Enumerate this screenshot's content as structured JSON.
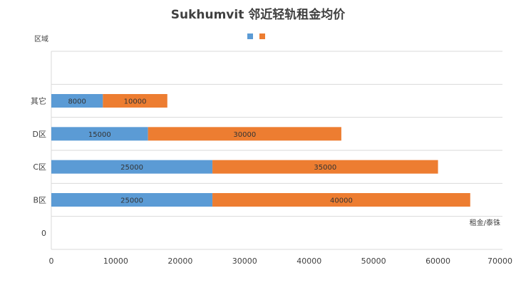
{
  "chart_data": {
    "type": "bar",
    "orientation": "horizontal",
    "stacked": true,
    "title": "Sukhumvit 邻近轻轨租金均价",
    "ylabel": "区域",
    "xlabel": "租金/泰铢",
    "categories": [
      "0",
      "B区",
      "C区",
      "D区",
      "其它",
      ""
    ],
    "series": [
      {
        "color": "#5B9BD5",
        "values": [
          0,
          25000,
          25000,
          15000,
          8000,
          0
        ],
        "labels": [
          "",
          "25000",
          "25000",
          "15000",
          "8000",
          ""
        ]
      },
      {
        "color": "#ED7D31",
        "values": [
          0,
          40000,
          35000,
          30000,
          10000,
          0
        ],
        "labels": [
          "",
          "40000",
          "35000",
          "30000",
          "10000",
          ""
        ]
      }
    ],
    "xlim": [
      0,
      70000
    ],
    "xticks": [
      "0",
      "10000",
      "20000",
      "30000",
      "40000",
      "50000",
      "60000",
      "70000"
    ],
    "xtick_values": [
      0,
      10000,
      20000,
      30000,
      40000,
      50000,
      60000,
      70000
    ],
    "grid": true,
    "legend_position": "top"
  }
}
